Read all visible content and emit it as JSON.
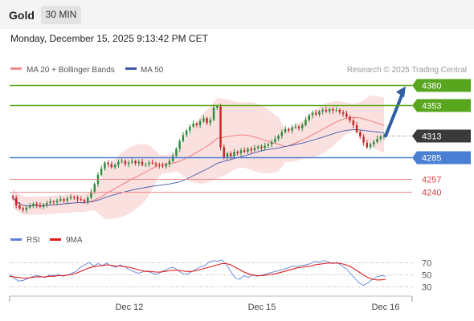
{
  "header": {
    "title": "Gold",
    "interval": "30 MIN",
    "datetime": "Monday, December 15, 2025 9:13:42 PM CET"
  },
  "legend": {
    "ma20": "MA 20 + Bollinger Bands",
    "ma50": "MA 50",
    "copyright": "Research © 2025 Trading Central"
  },
  "rsi_legend": {
    "rsi": "RSI",
    "ma9": "9MA"
  },
  "colors": {
    "support_resistance_green": "#58a61d",
    "pivot_blue": "#4a7fd4",
    "resistance_red": "#f28b8b",
    "last_price": "#3a3a3a",
    "bollinger_fill": "#fbe0e0",
    "ma20": "#f07070",
    "ma50": "#3d5aa8",
    "arrow": "#2f5ea3",
    "candle_up": "#2e8b3e",
    "candle_down": "#c62828",
    "rsi": "#5b82d6",
    "rsi_ma": "#e01b1b"
  },
  "chart_data": [
    {
      "type": "candlestick",
      "x_tick_labels": [
        "Dec 12",
        "Dec 15",
        "Dec 16"
      ],
      "levels": [
        {
          "label": "4380",
          "value": 4380,
          "kind": "target",
          "line": "green"
        },
        {
          "label": "4353",
          "value": 4353,
          "kind": "resistance",
          "line": "green"
        },
        {
          "label": "4313",
          "value": 4313,
          "kind": "last",
          "line": "dotted"
        },
        {
          "label": "4285",
          "value": 4285,
          "kind": "pivot",
          "line": "blue"
        },
        {
          "label": "4257",
          "value": 4257,
          "kind": "support",
          "line": "red"
        },
        {
          "label": "4240",
          "value": 4240,
          "kind": "support",
          "line": "red"
        }
      ],
      "ylim": [
        4205,
        4390
      ],
      "closes": [
        4232,
        4222,
        4218,
        4216,
        4219,
        4221,
        4224,
        4222,
        4220,
        4223,
        4225,
        4227,
        4226,
        4228,
        4230,
        4228,
        4231,
        4233,
        4232,
        4230,
        4229,
        4227,
        4232,
        4240,
        4250,
        4262,
        4270,
        4278,
        4276,
        4272,
        4275,
        4279,
        4280,
        4276,
        4278,
        4280,
        4277,
        4279,
        4275,
        4276,
        4278,
        4277,
        4275,
        4274,
        4273,
        4276,
        4280,
        4287,
        4296,
        4306,
        4314,
        4320,
        4325,
        4329,
        4327,
        4332,
        4336,
        4330,
        4334,
        4350,
        4352,
        4298,
        4284,
        4290,
        4286,
        4292,
        4290,
        4294,
        4292,
        4296,
        4294,
        4297,
        4299,
        4297,
        4300,
        4302,
        4305,
        4309,
        4313,
        4318,
        4322,
        4320,
        4324,
        4325,
        4323,
        4327,
        4334,
        4340,
        4343,
        4341,
        4345,
        4347,
        4345,
        4348,
        4346,
        4347,
        4344,
        4342,
        4338,
        4333,
        4327,
        4318,
        4312,
        4304,
        4298,
        4302,
        4305,
        4309,
        4312,
        4313
      ],
      "ma20_label": "MA 20 + Bollinger Bands",
      "ma50_label": "MA 50",
      "projection": {
        "from": 4313,
        "to": 4380
      }
    },
    {
      "type": "line",
      "name": "RSI panel",
      "y_tick_labels": [
        "70",
        "50",
        "30"
      ],
      "ylim": [
        18,
        82
      ],
      "series": [
        {
          "name": "RSI",
          "values": [
            50,
            44,
            39,
            40,
            43,
            46,
            48,
            47,
            45,
            49,
            48,
            50,
            47,
            49,
            52,
            55,
            62,
            66,
            70,
            64,
            68,
            65,
            69,
            64,
            62,
            66,
            63,
            58,
            55,
            52,
            54,
            56,
            53,
            50,
            53,
            57,
            60,
            62,
            57,
            52,
            50,
            54,
            58,
            62,
            64,
            70,
            73,
            72,
            74,
            66,
            55,
            44,
            42,
            48,
            45,
            50,
            47,
            49,
            51,
            53,
            55,
            57,
            59,
            61,
            64,
            63,
            65,
            66,
            68,
            72,
            70,
            73,
            71,
            68,
            70,
            65,
            60,
            52,
            44,
            36,
            32,
            36,
            42,
            46,
            48,
            47
          ]
        },
        {
          "name": "9MA",
          "values": [
            47,
            46,
            45,
            44,
            44,
            45,
            46,
            46,
            46,
            47,
            47,
            48,
            48,
            49,
            50,
            52,
            55,
            58,
            61,
            63,
            64,
            65,
            66,
            65,
            64,
            64,
            63,
            62,
            60,
            58,
            56,
            55,
            55,
            54,
            54,
            55,
            56,
            57,
            57,
            56,
            55,
            55,
            56,
            58,
            60,
            62,
            64,
            66,
            68,
            68,
            66,
            62,
            58,
            54,
            51,
            49,
            48,
            48,
            49,
            50,
            51,
            53,
            55,
            57,
            59,
            61,
            62,
            63,
            64,
            66,
            67,
            68,
            69,
            69,
            69,
            68,
            66,
            63,
            59,
            54,
            49,
            45,
            42,
            41,
            41,
            42
          ]
        }
      ]
    }
  ]
}
